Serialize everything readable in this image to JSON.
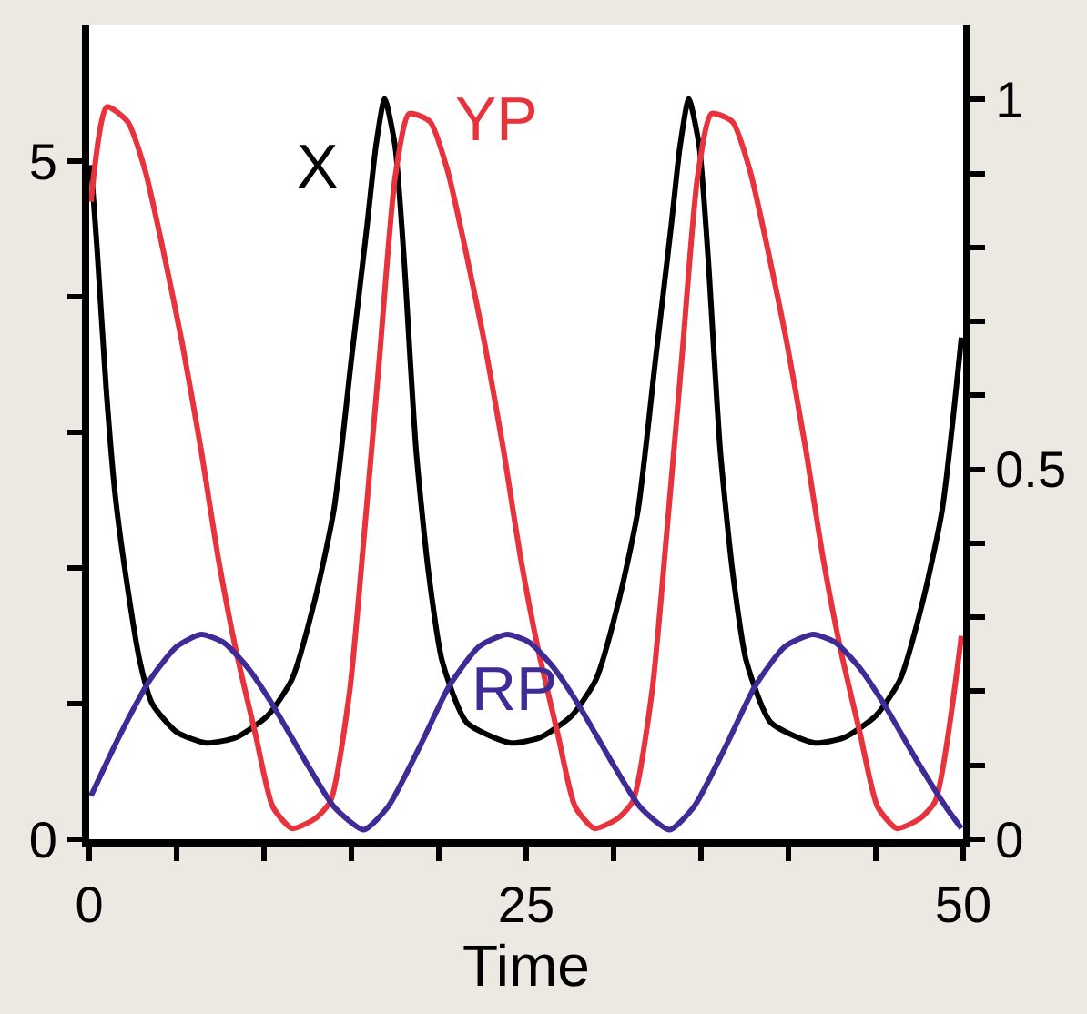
{
  "chart_data": {
    "type": "line",
    "xlabel": "Time",
    "xlim": [
      0,
      50
    ],
    "xticks": [
      0,
      {
        "value": 5,
        "label": null
      },
      {
        "value": 10,
        "label": null
      },
      {
        "value": 15,
        "label": null
      },
      {
        "value": 20,
        "label": null
      },
      25,
      {
        "value": 30,
        "label": null
      },
      {
        "value": 35,
        "label": null
      },
      {
        "value": 40,
        "label": null
      },
      {
        "value": 45,
        "label": null
      },
      50
    ],
    "ylim": [
      0,
      6
    ],
    "yticks": [
      0,
      {
        "value": 1,
        "label": null
      },
      {
        "value": 2,
        "label": null
      },
      {
        "value": 3,
        "label": null
      },
      {
        "value": 4,
        "label": null
      },
      5
    ],
    "y2lim": [
      0,
      1.1
    ],
    "y2ticks": [
      0,
      {
        "value": 0.1,
        "label": null
      },
      {
        "value": 0.2,
        "label": null
      },
      {
        "value": 0.3,
        "label": null
      },
      {
        "value": 0.4,
        "label": null
      },
      0.5,
      {
        "value": 0.6,
        "label": null
      },
      {
        "value": 0.7,
        "label": null
      },
      {
        "value": 0.8,
        "label": null
      },
      {
        "value": 0.9,
        "label": null
      },
      1
    ],
    "legend": false,
    "marker": "none",
    "line_style": "solid",
    "series": [
      {
        "name": "X",
        "color": "#000000",
        "x": [
          0.1,
          0.45,
          0.97,
          1.5,
          2.2,
          2.9,
          3.6,
          5.0,
          6.7,
          8.4,
          10.2,
          11.6,
          12.9,
          14.0,
          15.0,
          15.9,
          16.4,
          16.9,
          17.5,
          18.0,
          18.7,
          19.4,
          20.2,
          21.6,
          24.1,
          25.8,
          27.6,
          29.0,
          30.3,
          31.4,
          32.4,
          33.3,
          33.8,
          34.3,
          34.9,
          35.4,
          36.1,
          36.8,
          37.6,
          39.0,
          41.5,
          43.2,
          45.0,
          46.4,
          47.7,
          48.8,
          49.9
        ],
        "values": [
          4.97,
          4.35,
          3.32,
          2.52,
          1.85,
          1.31,
          1.0,
          0.79,
          0.71,
          0.75,
          0.91,
          1.18,
          1.76,
          2.43,
          3.54,
          4.53,
          5.11,
          5.46,
          5.11,
          4.3,
          2.87,
          1.98,
          1.31,
          0.86,
          0.71,
          0.75,
          0.91,
          1.18,
          1.76,
          2.43,
          3.54,
          4.53,
          5.11,
          5.46,
          5.11,
          4.3,
          2.87,
          1.98,
          1.31,
          0.86,
          0.71,
          0.75,
          0.91,
          1.18,
          1.76,
          2.43,
          3.7
        ]
      },
      {
        "name": "YP",
        "color": "#e8323c",
        "x": [
          0.1,
          1.0,
          2.2,
          3.2,
          4.3,
          5.3,
          6.4,
          7.4,
          8.4,
          9.5,
          10.5,
          11.6,
          12.9,
          13.8,
          14.9,
          15.7,
          16.6,
          17.5,
          18.3,
          19.5,
          20.5,
          21.6,
          22.6,
          23.7,
          24.7,
          25.7,
          26.8,
          27.8,
          28.9,
          30.2,
          31.1,
          32.2,
          33.0,
          33.9,
          34.8,
          35.6,
          36.8,
          37.8,
          38.9,
          39.9,
          41.0,
          42.0,
          43.0,
          44.1,
          45.1,
          46.2,
          47.5,
          48.4,
          49.9
        ],
        "values": [
          4.7,
          5.4,
          5.29,
          4.93,
          4.3,
          3.67,
          2.87,
          2.06,
          1.39,
          0.78,
          0.24,
          0.08,
          0.15,
          0.28,
          1.09,
          2.2,
          3.54,
          4.88,
          5.35,
          5.29,
          4.93,
          4.3,
          3.67,
          2.87,
          2.06,
          1.39,
          0.78,
          0.24,
          0.08,
          0.15,
          0.28,
          1.09,
          2.2,
          3.54,
          4.88,
          5.35,
          5.29,
          4.93,
          4.3,
          3.67,
          2.87,
          2.06,
          1.39,
          0.78,
          0.24,
          0.08,
          0.15,
          0.28,
          1.5
        ]
      },
      {
        "name": "RP",
        "color": "#3f2a96",
        "x": [
          0.1,
          1.8,
          3.5,
          5.0,
          6.4,
          7.7,
          9.1,
          10.5,
          12.3,
          14.0,
          15.7,
          17.1,
          18.9,
          20.6,
          22.3,
          23.9,
          25.2,
          26.6,
          28.0,
          29.8,
          31.5,
          33.2,
          34.6,
          36.4,
          38.1,
          39.8,
          41.4,
          42.7,
          44.1,
          45.5,
          47.3,
          49.0,
          49.9
        ],
        "values": [
          0.32,
          0.78,
          1.18,
          1.42,
          1.51,
          1.45,
          1.26,
          0.99,
          0.59,
          0.24,
          0.07,
          0.24,
          0.68,
          1.13,
          1.42,
          1.51,
          1.45,
          1.26,
          0.99,
          0.59,
          0.24,
          0.07,
          0.24,
          0.68,
          1.13,
          1.42,
          1.51,
          1.45,
          1.26,
          0.99,
          0.59,
          0.24,
          0.08
        ]
      }
    ]
  }
}
